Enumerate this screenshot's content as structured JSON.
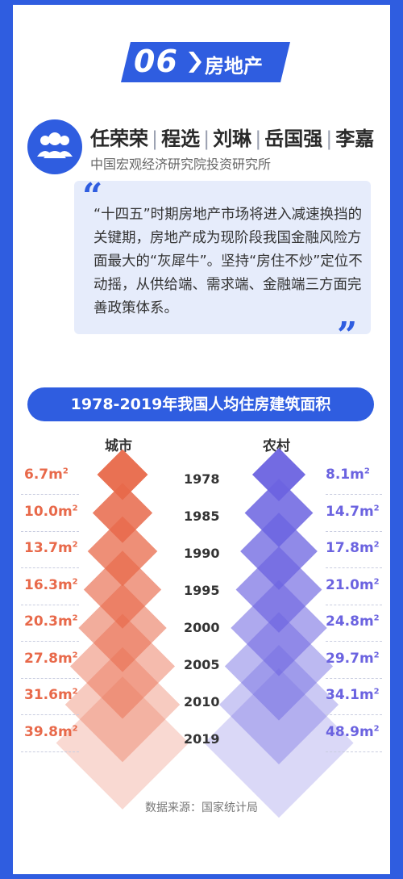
{
  "header": {
    "number": "06",
    "title": "房地产"
  },
  "authors": [
    "任荣荣",
    "程选",
    "刘琳",
    "岳国强",
    "李嘉"
  ],
  "institution": "中国宏观经济研究院投资研究所",
  "quote": "“十四五”时期房地产市场将进入减速换挡的关键期，房地产成为现阶段我国金融风险方面最大的“灰犀牛”。坚持“房住不炒”定位不动摇，从供给端、需求端、金融端三方面完善政策体系。",
  "icons": {
    "avatar": "people-group-icon",
    "quote_open": "quote-open-icon",
    "quote_close": "quote-close-icon"
  },
  "colors": {
    "brand": "#2f5de0",
    "urban": "#e8694a",
    "rural": "#6b63e0"
  },
  "chart_data": {
    "type": "table",
    "title": "1978-2019年我国人均住房建筑面积",
    "columns": [
      "城市",
      "农村"
    ],
    "unit": "m2",
    "years": [
      "1978",
      "1985",
      "1990",
      "1995",
      "2000",
      "2005",
      "2010",
      "2019"
    ],
    "series": [
      {
        "name": "城市",
        "values": [
          6.7,
          10.0,
          13.7,
          16.3,
          20.3,
          27.8,
          31.6,
          39.8
        ],
        "labels": [
          "6.7",
          "10.0",
          "13.7",
          "16.3",
          "20.3",
          "27.8",
          "31.6",
          "39.8"
        ]
      },
      {
        "name": "农村",
        "values": [
          8.1,
          14.7,
          17.8,
          21.0,
          24.8,
          29.7,
          34.1,
          48.9
        ],
        "labels": [
          "8.1",
          "14.7",
          "17.8",
          "21.0",
          "24.8",
          "29.7",
          "34.1",
          "48.9"
        ]
      }
    ]
  },
  "source": "数据来源：国家统计局"
}
